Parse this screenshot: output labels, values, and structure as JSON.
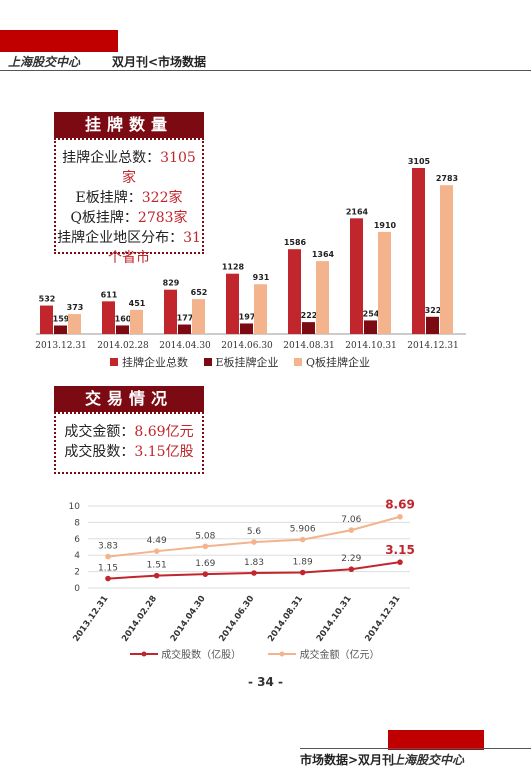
{
  "header": {
    "logo": "上海股交中心",
    "title": "双月刊<市场数据"
  },
  "listing_box": {
    "title": "挂牌数量",
    "lines": [
      {
        "label": "挂牌企业总数：",
        "value": "3105家"
      },
      {
        "label": "E板挂牌：",
        "value": "322家"
      },
      {
        "label": "Q板挂牌：",
        "value": "2783家"
      },
      {
        "label": "挂牌企业地区分布：",
        "value": "31"
      },
      {
        "label": "",
        "value": "个省市"
      }
    ]
  },
  "trade_box": {
    "title": "交易情况",
    "lines": [
      {
        "label": "成交金额：",
        "value": "8.69亿元"
      },
      {
        "label": "成交股数：",
        "value": "3.15亿股"
      }
    ]
  },
  "chart_data": [
    {
      "type": "bar",
      "categories": [
        "2013.12.31",
        "2014.02.28",
        "2014.04.30",
        "2014.06.30",
        "2014.08.31",
        "2014.10.31",
        "2014.12.31"
      ],
      "series": [
        {
          "name": "挂牌企业总数",
          "color": "#c0262c",
          "values": [
            532,
            611,
            829,
            1128,
            1586,
            2164,
            3105
          ]
        },
        {
          "name": "E板挂牌企业",
          "color": "#7b0a13",
          "values": [
            159,
            160,
            177,
            197,
            222,
            254,
            322
          ]
        },
        {
          "name": "Q板挂牌企业",
          "color": "#f3b48d",
          "values": [
            373,
            451,
            652,
            931,
            1364,
            1910,
            2783
          ]
        }
      ],
      "legend": "bottom"
    },
    {
      "type": "line",
      "categories": [
        "2013.12.31",
        "2014.02.28",
        "2014.04.30",
        "2014.06.30",
        "2014.08.31",
        "2014.10.31",
        "2014.12.31"
      ],
      "ylim": [
        0,
        10
      ],
      "yticks": [
        0,
        2,
        4,
        6,
        8,
        10
      ],
      "grid": true,
      "series": [
        {
          "name": "成交股数（亿股）",
          "color": "#c0262c",
          "values": [
            1.15,
            1.51,
            1.69,
            1.83,
            1.89,
            2.29,
            3.15
          ]
        },
        {
          "name": "成交金额（亿元）",
          "color": "#f3b48d",
          "values": [
            3.83,
            4.49,
            5.08,
            5.6,
            5.906,
            7.06,
            8.69
          ]
        }
      ],
      "legend": "bottom"
    }
  ],
  "page_number": "- 34 -",
  "footer": {
    "title": "市场数据>双月刊",
    "logo": "上海股交中心"
  }
}
